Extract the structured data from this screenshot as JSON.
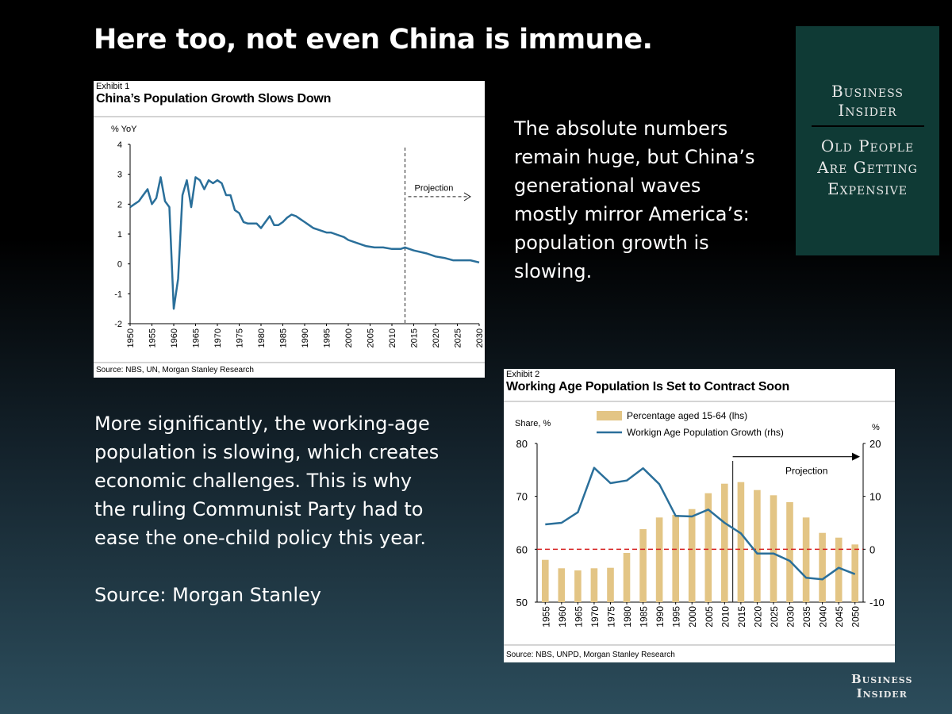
{
  "slide": {
    "title": "Here too, not even China is immune.",
    "paragraph1": "The absolute numbers remain huge, but China’s generational waves mostly mirror America’s: population growth is slowing.",
    "paragraph2": "More significantly, the working-age population is slowing, which creates economic challenges. This is why the ruling Communist Party had to ease the one-child policy this year.",
    "source_note": "Source: Morgan Stanley"
  },
  "brand": {
    "name_line1": "Business",
    "name_line2": "Insider",
    "topic_line1": "Old People",
    "topic_line2": "Are Getting",
    "topic_line3": "Expensive",
    "footer_line1": "Business",
    "footer_line2": "Insider",
    "box_color": "#0f3a35"
  },
  "chart_data": [
    {
      "type": "line",
      "exhibit": "Exhibit 1",
      "title": "China’s Population Growth Slows Down",
      "ylabel": "% YoY",
      "xlabel": "",
      "ylim": [
        -2,
        4
      ],
      "yticks": [
        4,
        3,
        2,
        1,
        0,
        -1,
        -2
      ],
      "xlim": [
        1950,
        2030
      ],
      "xticks": [
        1950,
        1955,
        1960,
        1965,
        1970,
        1975,
        1980,
        1985,
        1990,
        1995,
        2000,
        2005,
        2010,
        2015,
        2020,
        2025,
        2030
      ],
      "projection_start": 2013,
      "annotation": "Projection",
      "source": "Source: NBS, UN, Morgan Stanley Research",
      "line_color": "#2a6f9a",
      "series": [
        {
          "name": "Population growth",
          "x": [
            1950,
            1951,
            1952,
            1953,
            1954,
            1955,
            1956,
            1957,
            1958,
            1959,
            1960,
            1961,
            1962,
            1963,
            1964,
            1965,
            1966,
            1967,
            1968,
            1969,
            1970,
            1971,
            1972,
            1973,
            1974,
            1975,
            1976,
            1977,
            1978,
            1979,
            1980,
            1981,
            1982,
            1983,
            1984,
            1985,
            1986,
            1987,
            1988,
            1989,
            1990,
            1991,
            1992,
            1993,
            1994,
            1995,
            1996,
            1997,
            1998,
            1999,
            2000,
            2002,
            2004,
            2006,
            2008,
            2010,
            2012,
            2013,
            2015,
            2018,
            2020,
            2022,
            2024,
            2026,
            2028,
            2030
          ],
          "values": [
            1.9,
            2.0,
            2.1,
            2.3,
            2.5,
            2.0,
            2.2,
            2.9,
            2.1,
            1.9,
            -1.5,
            -0.5,
            2.3,
            2.8,
            1.9,
            2.9,
            2.8,
            2.5,
            2.8,
            2.7,
            2.8,
            2.7,
            2.3,
            2.3,
            1.8,
            1.7,
            1.4,
            1.35,
            1.35,
            1.35,
            1.2,
            1.4,
            1.6,
            1.3,
            1.3,
            1.4,
            1.55,
            1.65,
            1.6,
            1.5,
            1.4,
            1.3,
            1.2,
            1.15,
            1.1,
            1.05,
            1.05,
            1.0,
            0.95,
            0.9,
            0.8,
            0.7,
            0.6,
            0.55,
            0.55,
            0.5,
            0.5,
            0.55,
            0.45,
            0.35,
            0.25,
            0.2,
            0.12,
            0.12,
            0.12,
            0.05
          ]
        }
      ]
    },
    {
      "type": "bar",
      "exhibit": "Exhibit 2",
      "title": "Working Age Population Is Set to Contract Soon",
      "ylabel_left": "Share, %",
      "ylabel_right": "%",
      "ylim_left": [
        50,
        80
      ],
      "yticks_left": [
        80,
        70,
        60,
        50
      ],
      "ylim_right": [
        -10,
        20
      ],
      "yticks_right": [
        20,
        10,
        0,
        -10
      ],
      "categories": [
        "1955",
        "1960",
        "1965",
        "1970",
        "1975",
        "1980",
        "1985",
        "1990",
        "1995",
        "2000",
        "2005",
        "2010",
        "2015",
        "2020",
        "2025",
        "2030",
        "2035",
        "2040",
        "2045",
        "2050"
      ],
      "projection_start": "2015",
      "annotation": "Projection",
      "source": "Source: NBS, UNPD, Morgan Stanley Research",
      "bar_color": "#e3c585",
      "line_color": "#2a6f9a",
      "ref_line_color": "#d62020",
      "series": [
        {
          "name": "Percentage aged 15-64 (lhs)",
          "kind": "bar",
          "axis": "left",
          "values": [
            58.0,
            56.4,
            56.0,
            56.4,
            56.5,
            59.3,
            63.8,
            66.0,
            66.5,
            67.6,
            70.6,
            72.4,
            72.7,
            71.2,
            70.2,
            68.9,
            66.0,
            63.1,
            62.2,
            60.9
          ]
        },
        {
          "name": "Workign Age Population Growth (rhs)",
          "kind": "line",
          "axis": "right",
          "values": [
            4.7,
            5.0,
            7.0,
            15.4,
            12.5,
            13.0,
            15.3,
            12.3,
            6.3,
            6.2,
            7.5,
            5.0,
            3.0,
            -0.8,
            -0.8,
            -2.2,
            -5.4,
            -5.7,
            -3.5,
            -4.7
          ]
        }
      ]
    }
  ]
}
